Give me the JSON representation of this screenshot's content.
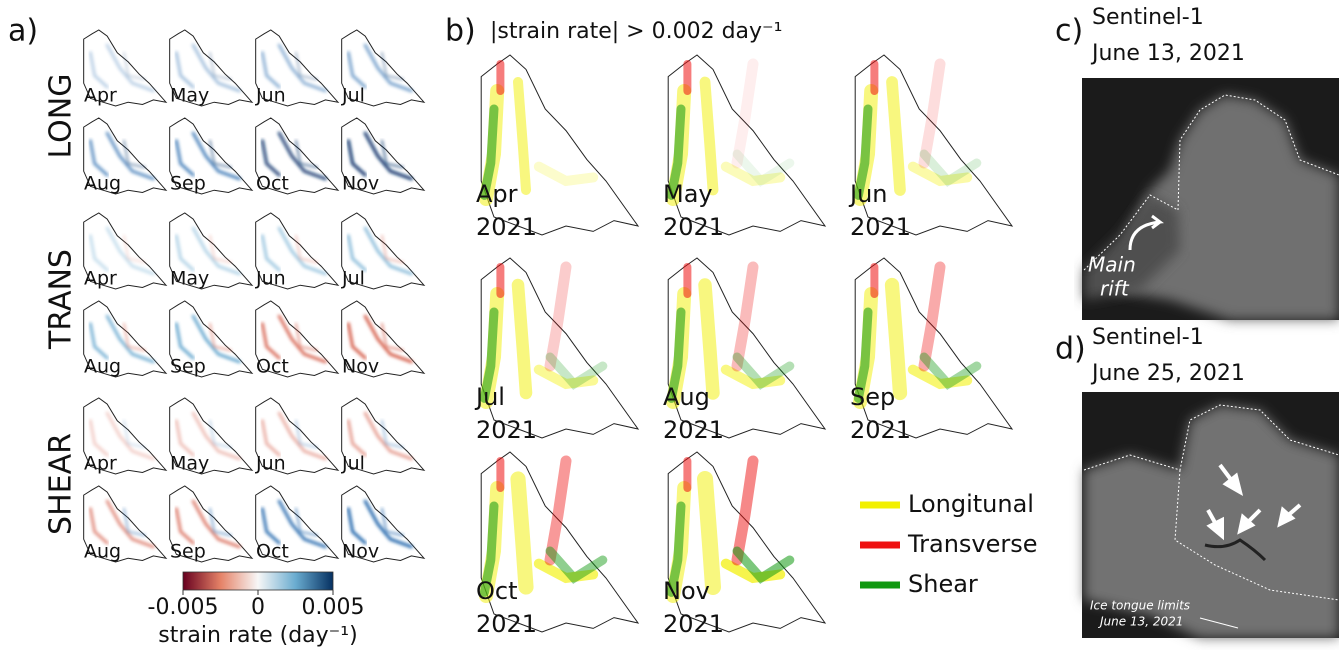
{
  "panel_a": {
    "label": "a)",
    "rows": [
      "LONG",
      "TRANS",
      "SHEAR"
    ],
    "months": [
      "Apr",
      "May",
      "Jun",
      "Jul",
      "Aug",
      "Sep",
      "Oct",
      "Nov"
    ],
    "colorbar": {
      "lim": [
        -0.005,
        0.005
      ],
      "ticks": [
        -0.005,
        0,
        0.005
      ],
      "label": "strain rate (day⁻¹)"
    }
  },
  "panel_b": {
    "label": "b)",
    "title": "|strain rate| > 0.002 day⁻¹",
    "maps": [
      {
        "month": "Apr",
        "year": "2021"
      },
      {
        "month": "May",
        "year": "2021"
      },
      {
        "month": "Jun",
        "year": "2021"
      },
      {
        "month": "Jul",
        "year": "2021"
      },
      {
        "month": "Aug",
        "year": "2021"
      },
      {
        "month": "Sep",
        "year": "2021"
      },
      {
        "month": "Oct",
        "year": "2021"
      },
      {
        "month": "Nov",
        "year": "2021"
      }
    ],
    "legend": [
      {
        "name": "Longitunal",
        "color": "#f2f000"
      },
      {
        "name": "Transverse",
        "color": "#ee1111"
      },
      {
        "name": "Shear",
        "color": "#119911"
      }
    ]
  },
  "panel_c": {
    "label": "c)",
    "title": [
      "Sentinel-1",
      "June 13, 2021"
    ],
    "annotation": [
      "Main",
      "rift"
    ]
  },
  "panel_d": {
    "label": "d)",
    "title": [
      "Sentinel-1",
      "June 25, 2021"
    ],
    "annotation": [
      "Ice tongue limits",
      "June 13, 2021"
    ]
  }
}
